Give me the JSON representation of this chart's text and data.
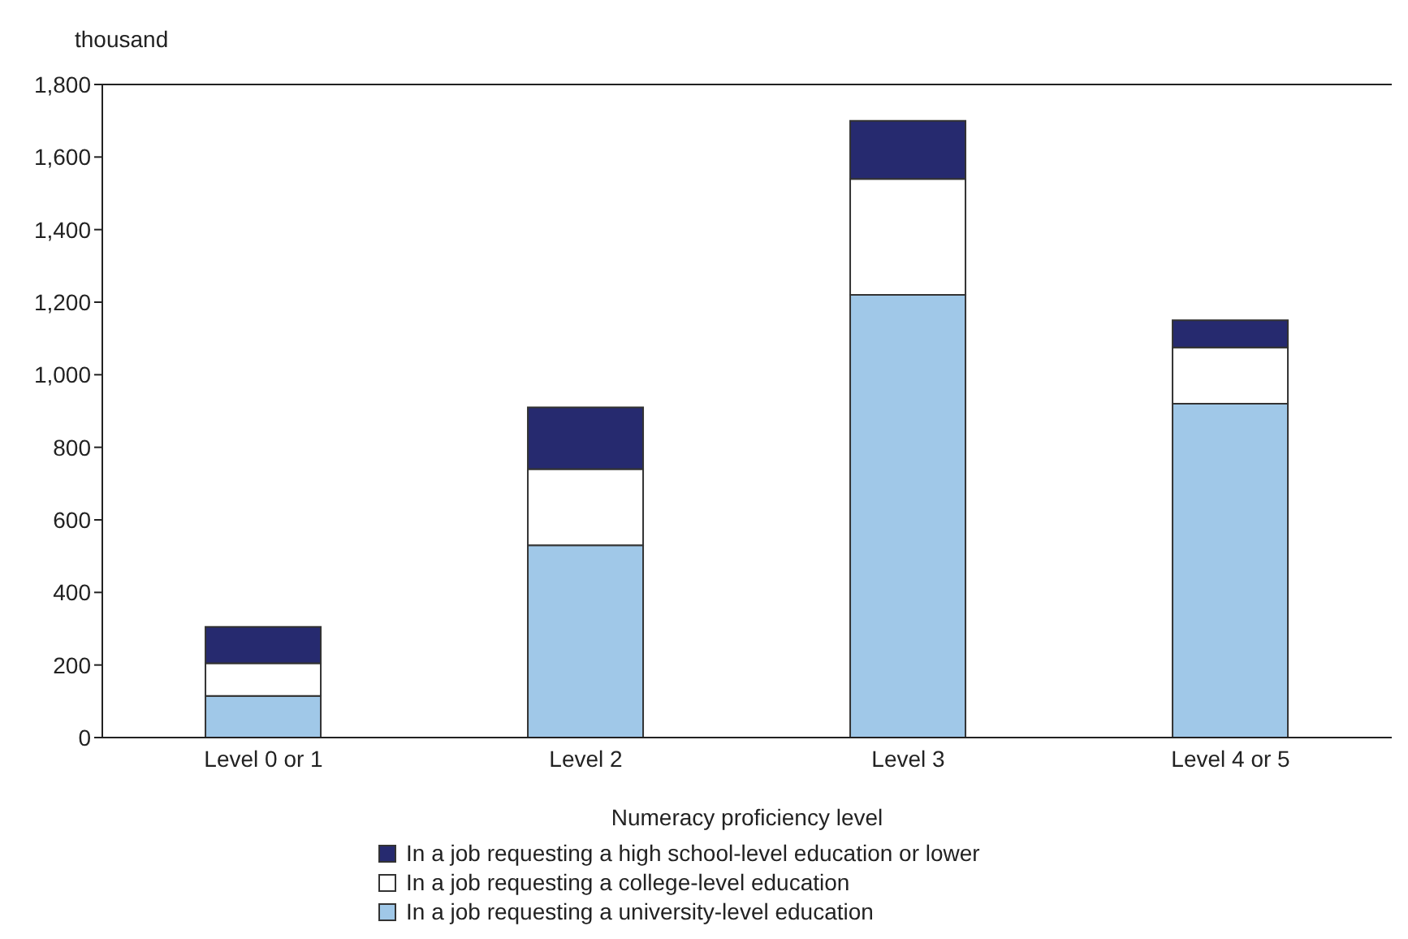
{
  "chart_data": {
    "type": "bar",
    "stacked": true,
    "ylabel": "thousand",
    "xlabel": "Numeracy proficiency level",
    "categories": [
      "Level 0 or 1",
      "Level 2",
      "Level 3",
      "Level 4 or 5"
    ],
    "series": [
      {
        "name": "In a job requesting a university-level education",
        "color": "#a0c8e8",
        "values": [
          115,
          530,
          1220,
          920
        ]
      },
      {
        "name": "In a job requesting a college-level education",
        "color": "#ffffff",
        "values": [
          90,
          210,
          320,
          155
        ]
      },
      {
        "name": "In a job requesting a high school-level education or lower",
        "color": "#262a6f",
        "values": [
          100,
          170,
          160,
          75
        ]
      }
    ],
    "ylim": [
      0,
      1800
    ],
    "yticks": [
      0,
      200,
      400,
      600,
      800,
      {
        "value": 1000,
        "label": "1,000"
      },
      {
        "value": 1200,
        "label": "1,200"
      },
      {
        "value": 1400,
        "label": "1,400"
      },
      {
        "value": 1600,
        "label": "1,600"
      },
      {
        "value": 1800,
        "label": "1,800"
      }
    ],
    "grid": false,
    "legend": "bottom"
  }
}
